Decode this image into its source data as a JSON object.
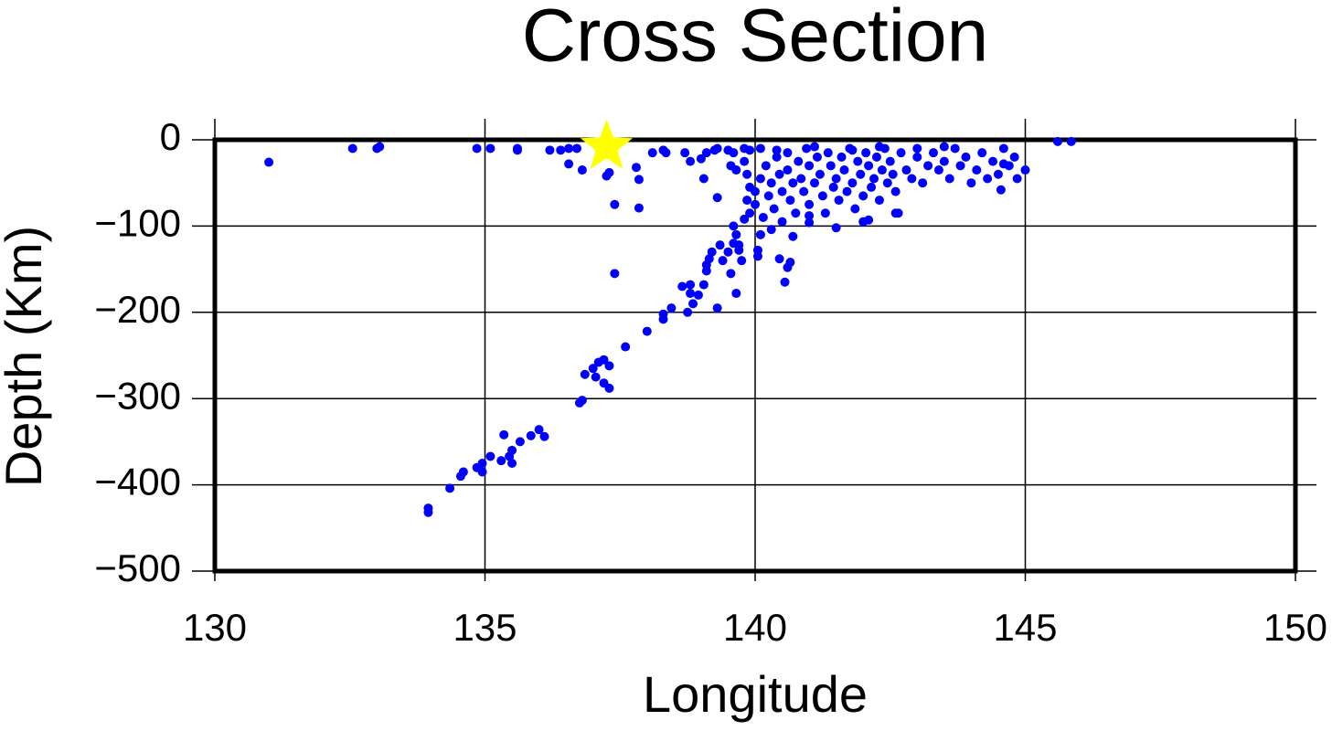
{
  "chart_data": {
    "type": "scatter",
    "title": "Cross Section",
    "x_label": "Longitude",
    "y_label": "Depth (Km)",
    "xlim": [
      130,
      150
    ],
    "ylim": [
      -500,
      0
    ],
    "xticks": [
      130,
      135,
      140,
      145,
      150
    ],
    "yticks": [
      0,
      {
        "value": -100,
        "label": "−100"
      },
      {
        "value": -200,
        "label": "−200"
      },
      {
        "value": -300,
        "label": "−300"
      },
      {
        "value": -400,
        "label": "−400"
      },
      {
        "value": -500,
        "label": "−500"
      }
    ],
    "grid": true,
    "series": [
      {
        "color": "#0000ff",
        "marker": "circle",
        "x": [
          131.0,
          132.55,
          133.0,
          133.05,
          134.85,
          135.1,
          135.6,
          135.6,
          136.2,
          136.4,
          136.55,
          136.7,
          136.55,
          136.8,
          137.3,
          137.25,
          137.4,
          137.8,
          137.85,
          137.85,
          138.1,
          138.3,
          138.35,
          138.7,
          138.8,
          139.0,
          139.1,
          139.25,
          139.3,
          139.5,
          139.8,
          139.9,
          139.05,
          139.3,
          139.65,
          139.55,
          145.6,
          145.85,
          137.4,
          137.6,
          137.3,
          137.2,
          137.1,
          137.0,
          137.05,
          136.85,
          137.2,
          137.3,
          136.8,
          136.75,
          136.1,
          136.0,
          135.85,
          135.65,
          135.35,
          135.5,
          135.45,
          135.3,
          135.5,
          135.1,
          134.95,
          134.85,
          134.95,
          134.6,
          134.55,
          134.35,
          133.95,
          133.95,
          138.0,
          138.3,
          138.3,
          138.45,
          138.65,
          138.8,
          138.8,
          138.95,
          138.85,
          138.75,
          139.05,
          139.1,
          139.1,
          139.15,
          139.2,
          139.35,
          139.4,
          139.3,
          139.5,
          139.6,
          139.7,
          139.75,
          139.55,
          139.65,
          139.7,
          139.6,
          139.65,
          139.8,
          140.05,
          140.05,
          140.1,
          140.3,
          140.45,
          140.6,
          140.65,
          140.55,
          140.7,
          141.0,
          141.5,
          142.0,
          142.1,
          142.6,
          139.85,
          139.9,
          139.85,
          139.9,
          140.0,
          140.0,
          140.1,
          140.15,
          140.2,
          140.25,
          140.3,
          140.35,
          140.4,
          140.45,
          140.5,
          140.5,
          140.6,
          140.6,
          140.65,
          140.7,
          140.75,
          140.8,
          140.85,
          140.9,
          140.95,
          141.0,
          141.0,
          141.1,
          141.15,
          141.2,
          141.25,
          141.3,
          141.35,
          141.4,
          141.45,
          141.5,
          141.55,
          141.6,
          141.65,
          141.7,
          141.75,
          141.8,
          141.85,
          141.9,
          141.95,
          142.0,
          142.05,
          142.1,
          142.15,
          142.2,
          142.25,
          142.3,
          142.35,
          142.4,
          142.45,
          142.5,
          142.55,
          142.6,
          142.7,
          142.8,
          142.9,
          143.0,
          143.1,
          143.2,
          143.3,
          143.4,
          143.5,
          143.6,
          143.7,
          143.8,
          143.9,
          144.0,
          144.1,
          144.2,
          144.3,
          144.4,
          144.5,
          144.55,
          144.6,
          144.7,
          144.8,
          144.85,
          145.0,
          139.6,
          139.8,
          140.1,
          140.4,
          141.1,
          141.8,
          142.3,
          143.0,
          143.5,
          144.6,
          142.65,
          141.0
        ],
        "values": [
          -26,
          -10,
          -10,
          -8,
          -10,
          -10,
          -12,
          -10,
          -12,
          -12,
          -10,
          -10,
          -28,
          -35,
          -38,
          -42,
          -75,
          -32,
          -46,
          -79,
          -15,
          -12,
          -15,
          -15,
          -25,
          -22,
          -15,
          -12,
          -10,
          -12,
          -10,
          -12,
          -45,
          -67,
          -35,
          -30,
          -2,
          -2,
          -155,
          -240,
          -262,
          -255,
          -258,
          -265,
          -275,
          -272,
          -282,
          -288,
          -302,
          -305,
          -344,
          -336,
          -343,
          -350,
          -342,
          -360,
          -367,
          -372,
          -375,
          -367,
          -375,
          -380,
          -385,
          -385,
          -390,
          -404,
          -427,
          -432,
          -222,
          -208,
          -202,
          -195,
          -170,
          -168,
          -178,
          -180,
          -190,
          -200,
          -168,
          -152,
          -145,
          -138,
          -130,
          -122,
          -140,
          -195,
          -130,
          -120,
          -128,
          -140,
          -155,
          -178,
          -122,
          -100,
          -110,
          -92,
          -128,
          -135,
          -110,
          -104,
          -138,
          -148,
          -142,
          -165,
          -112,
          -96,
          -102,
          -95,
          -93,
          -85,
          -40,
          -55,
          -70,
          -85,
          -60,
          -75,
          -45,
          -90,
          -30,
          -65,
          -50,
          -80,
          -20,
          -40,
          -60,
          -95,
          -15,
          -35,
          -70,
          -50,
          -85,
          -25,
          -45,
          -60,
          -10,
          -30,
          -75,
          -50,
          -20,
          -40,
          -65,
          -85,
          -15,
          -30,
          -55,
          -45,
          -70,
          -20,
          -35,
          -60,
          -10,
          -50,
          -80,
          -25,
          -40,
          -65,
          -15,
          -30,
          -55,
          -45,
          -20,
          -70,
          -35,
          -10,
          -50,
          -25,
          -40,
          -60,
          -15,
          -35,
          -45,
          -20,
          -50,
          -30,
          -15,
          -35,
          -25,
          -45,
          -10,
          -30,
          -20,
          -50,
          -35,
          -15,
          -45,
          -25,
          -40,
          -58,
          -10,
          -30,
          -20,
          -45,
          -35,
          -15,
          -25,
          -10,
          -12,
          -8,
          -12,
          -8,
          -10,
          -8,
          -28,
          -85,
          -88
        ]
      },
      {
        "color": "#ffff00",
        "marker": "star",
        "x": [
          137.25
        ],
        "values": [
          -8
        ]
      }
    ]
  }
}
